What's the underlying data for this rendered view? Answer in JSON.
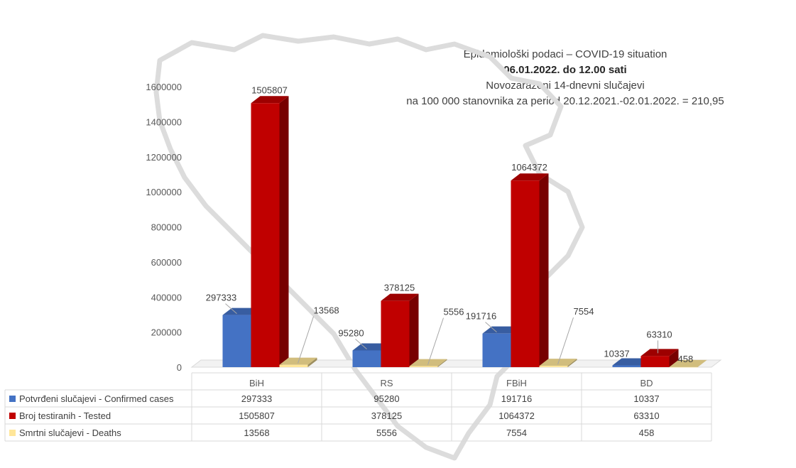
{
  "chart_data": {
    "type": "bar",
    "title_lines": [
      "Epidemiološki podaci – COVID-19 situation",
      "06.01.2022. do 12.00 sati",
      "Novozaraženi 14-dnevni slučajevi",
      "na 100 000 stanovnika za period 20.12.2021.-02.01.2022. = 210,95"
    ],
    "categories": [
      "BiH",
      "RS",
      "FBiH",
      "BD"
    ],
    "series": [
      {
        "name": "Potvrđeni slučajevi - Confirmed cases",
        "values": [
          297333,
          95280,
          191716,
          10337
        ],
        "labels": [
          "297333",
          "95280",
          "191716",
          "10337"
        ],
        "color": "#4472C4"
      },
      {
        "name": "Broj testiranih - Tested",
        "values": [
          1505807,
          378125,
          1064372,
          63310
        ],
        "labels": [
          "1505807",
          "378125",
          "1064372",
          "63310"
        ],
        "color": "#C00000"
      },
      {
        "name": "Smrtni slučajevi - Deaths",
        "values": [
          13568,
          5556,
          7554,
          458
        ],
        "labels": [
          "13568",
          "5556",
          "7554",
          "458"
        ],
        "color": "#FFE699"
      }
    ],
    "ylim": [
      0,
      1600000
    ],
    "yticks": [
      "0",
      "200000",
      "400000",
      "600000",
      "800000",
      "1000000",
      "1200000",
      "1400000",
      "1600000"
    ],
    "grid": false,
    "legend": "data table below chart",
    "style": "3d-column"
  }
}
